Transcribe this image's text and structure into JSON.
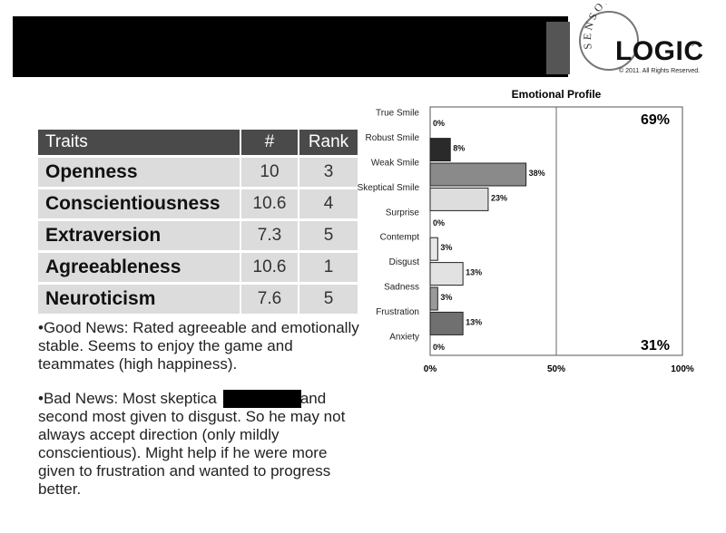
{
  "logo": {
    "brand_arc": "SENSORY",
    "brand_word": "LOGIC",
    "registered": "®",
    "copyright": "© 2011. All Rights Reserved."
  },
  "traits": {
    "headers": [
      "Traits",
      "#",
      "Rank"
    ],
    "rows": [
      {
        "name": "Openness",
        "score": "10",
        "rank": "3"
      },
      {
        "name": "Conscientiousness",
        "score": "10.6",
        "rank": "4"
      },
      {
        "name": "Extraversion",
        "score": "7.3",
        "rank": "5"
      },
      {
        "name": "Agreeableness",
        "score": "10.6",
        "rank": "1"
      },
      {
        "name": "Neuroticism",
        "score": "7.6",
        "rank": "5"
      }
    ]
  },
  "notes": {
    "good_line1": "•Good News: Rated agreeable and emotionally",
    "good_line2": "stable. Seems to enjoy the game and",
    "good_line3": "teammates (high happiness).",
    "bad_line1a": "•Bad News: Most skeptica",
    "bad_line1b": "and",
    "bad_line2": "second most given to disgust. So he may not",
    "bad_line3": "always accept direction (only mildly",
    "bad_line4": "conscientious). Might help if he were more",
    "bad_line5": "given to frustration and wanted to progress",
    "bad_line6": "better."
  },
  "chart_data": {
    "type": "bar",
    "orientation": "horizontal",
    "title": "Emotional Profile",
    "categories": [
      "True Smile",
      "Robust Smile",
      "Weak Smile",
      "Skeptical Smile",
      "Surprise",
      "Contempt",
      "Disgust",
      "Sadness",
      "Frustration",
      "Anxiety"
    ],
    "values": [
      0,
      8,
      38,
      23,
      0,
      3,
      13,
      3,
      13,
      0
    ],
    "value_labels": [
      "0%",
      "8%",
      "38%",
      "23%",
      "0%",
      "3%",
      "13%",
      "3%",
      "13%",
      "0%"
    ],
    "bar_colors": [
      "#ffffff",
      "#2a2a2a",
      "#8a8a8a",
      "#dddddd",
      "#ffffff",
      "#e8e8e8",
      "#e2e2e2",
      "#9a9a9a",
      "#707070",
      "#ffffff"
    ],
    "xlim": [
      0,
      100
    ],
    "x_ticks": [
      "0%",
      "50%",
      "100%"
    ],
    "annotations": [
      "69%",
      "31%"
    ]
  }
}
